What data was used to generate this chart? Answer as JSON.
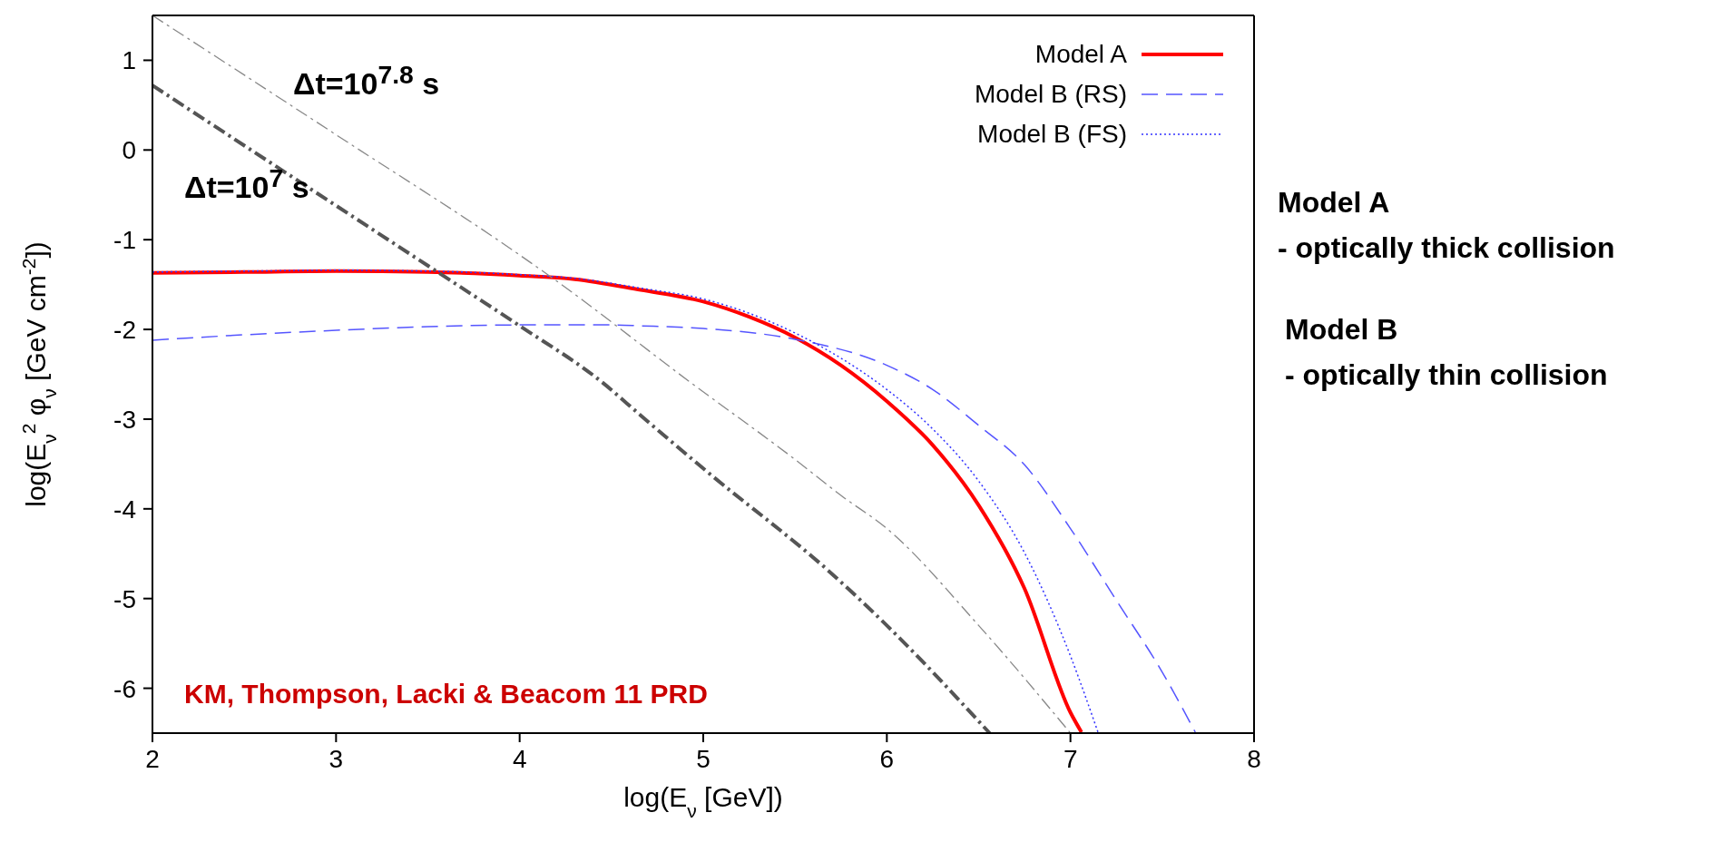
{
  "chart_data": {
    "type": "line",
    "xlabel": "log(E$_{ν}$ [GeV])",
    "ylabel": "log(E$_{ν}$$^{2}$ φ$_{ν}$ [GeV cm$^{-2}$])",
    "xlim": [
      2,
      8
    ],
    "ylim": [
      -6.5,
      1.5
    ],
    "xticks": [
      2,
      3,
      4,
      5,
      6,
      7,
      8
    ],
    "yticks": [
      -6,
      -5,
      -4,
      -3,
      -2,
      -1,
      0,
      1
    ],
    "legend": "top right",
    "marker": "none",
    "series": [
      {
        "name": "Model A",
        "color": "#ff0000",
        "line_style": "solid",
        "x": [
          2,
          2.5,
          3,
          3.5,
          4,
          4.3,
          4.66,
          5,
          5.25,
          5.5,
          5.75,
          6,
          6.25,
          6.5,
          6.75,
          7,
          7.06
        ],
        "values": [
          -1.37,
          -1.36,
          -1.35,
          -1.36,
          -1.4,
          -1.44,
          -1.56,
          -1.69,
          -1.86,
          -2.09,
          -2.4,
          -2.8,
          -3.29,
          -3.96,
          -4.89,
          -6.27,
          -6.49
        ]
      },
      {
        "name": "Model B (RS)",
        "color": "#5555ff",
        "line_style": "dashed",
        "x": [
          2,
          2.5,
          3,
          3.5,
          4,
          4.5,
          4.66,
          5,
          5.5,
          6,
          6.25,
          6.5,
          6.75,
          7,
          7.25,
          7.5,
          7.68
        ],
        "values": [
          -2.12,
          -2.06,
          -2.01,
          -1.97,
          -1.95,
          -1.95,
          -1.96,
          -1.99,
          -2.11,
          -2.4,
          -2.67,
          -3.07,
          -3.51,
          -4.22,
          -5.02,
          -5.82,
          -6.49
        ]
      },
      {
        "name": "Model B (FS)",
        "color": "#3333ff",
        "line_style": "dotted",
        "x": [
          2,
          2.5,
          3,
          3.5,
          4,
          4.3,
          4.66,
          5,
          5.25,
          5.5,
          5.75,
          6,
          6.25,
          6.5,
          6.75,
          7,
          7.15
        ],
        "values": [
          -1.36,
          -1.35,
          -1.34,
          -1.35,
          -1.39,
          -1.43,
          -1.54,
          -1.66,
          -1.82,
          -2.04,
          -2.32,
          -2.67,
          -3.11,
          -3.69,
          -4.49,
          -5.64,
          -6.49
        ]
      },
      {
        "color": "#888888",
        "line_style": "dashdot",
        "x": [
          2,
          3,
          4,
          4.16,
          4.93,
          5.5,
          5.75,
          6,
          6.5,
          7
        ],
        "values": [
          1.5,
          0.17,
          -1.17,
          -1.4,
          -2.59,
          -3.45,
          -3.85,
          -4.22,
          -5.3,
          -6.5
        ]
      },
      {
        "color": "#555555",
        "line_style": "dashdot",
        "x": [
          2,
          3,
          3.62,
          4,
          4.45,
          4.66,
          5,
          5.72,
          6,
          6.56
        ],
        "values": [
          0.72,
          -0.62,
          -1.45,
          -1.96,
          -2.59,
          -2.96,
          -3.55,
          -4.76,
          -5.3,
          -6.5
        ]
      }
    ],
    "annotations": [
      "Δt=10$^{7.8}$ s",
      "Δt=10$^{7}$ s",
      "KM, Thompson, Lacki & Beacom 11 PRD",
      "Model A",
      "- optically thick collision",
      "Model B",
      "- optically thin collision"
    ]
  }
}
